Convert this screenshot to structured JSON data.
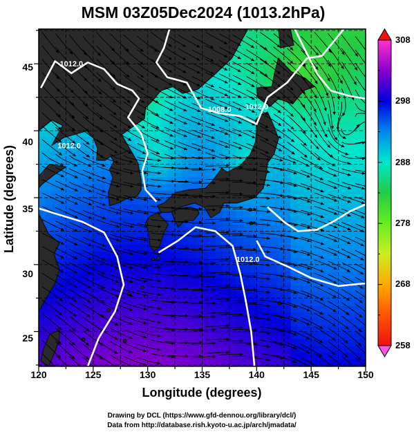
{
  "title": "MSM 03Z05Dec2024 (1013.2hPa)",
  "xlabel": "Longitude (degrees)",
  "ylabel": "Latitude  (degrees)",
  "x_ticks": [
    "120",
    "125",
    "130",
    "135",
    "140",
    "145",
    "150"
  ],
  "y_ticks": [
    "25",
    "30",
    "35",
    "40",
    "45"
  ],
  "colorbar_ticks": [
    "308",
    "298",
    "288",
    "278",
    "268",
    "258"
  ],
  "contour_labels": [
    "1012.0",
    "1008.0",
    "1012.0",
    "1012.0",
    "1012.0"
  ],
  "credits": {
    "line1": "Drawing by DCL (https://www.gfd-dennou.org/library/dcl/)",
    "line2": "Data from http://database.rish.kyoto-u.ac.jp/arch/jmadata/"
  },
  "chart_data": {
    "type": "heatmap",
    "title": "MSM 03Z05Dec2024 (1013.2hPa)",
    "xlabel": "Longitude (degrees)",
    "ylabel": "Latitude  (degrees)",
    "xlim": [
      120,
      150
    ],
    "ylim": [
      22.4,
      47.6
    ],
    "x_ticks": [
      120,
      125,
      130,
      135,
      140,
      145,
      150
    ],
    "y_ticks": [
      25,
      30,
      35,
      40,
      45
    ],
    "grid": true,
    "colorbar": {
      "range": [
        258,
        308
      ],
      "ticks": [
        258,
        268,
        278,
        288,
        298,
        308
      ],
      "colors": [
        "#ff33cc",
        "#8800cc",
        "#0000dd",
        "#0088ee",
        "#00e6cc",
        "#22cc44",
        "#66ee22",
        "#ccee22",
        "#ffaa00",
        "#ff5500",
        "#ee1111"
      ],
      "extend": "both"
    },
    "contours": {
      "levels": [
        1008,
        1012
      ],
      "color": "#ffffff"
    }
  }
}
